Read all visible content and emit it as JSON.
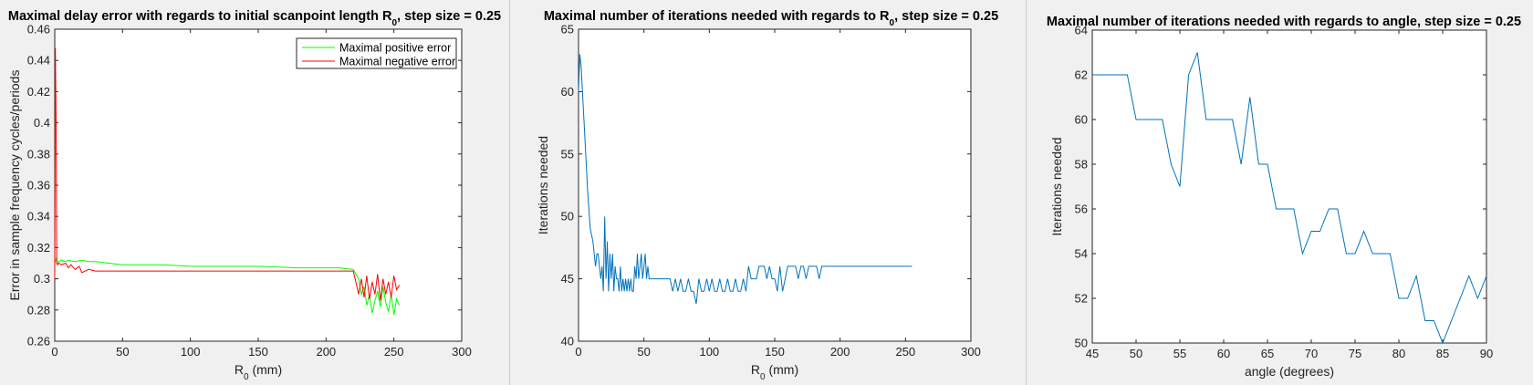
{
  "charts": [
    {
      "type": "line",
      "title_main": "Maximal delay error with regards to initial scanpoint length R",
      "title_sub": "0",
      "title_tail": ", step size = 0.25",
      "xlabel_main": "R",
      "xlabel_sub": "0",
      "xlabel_tail": " (mm)",
      "ylabel": "Error in sample frequency cycles/periods",
      "xlim": [
        0,
        300
      ],
      "ylim": [
        0.26,
        0.46
      ],
      "xticks": [
        0,
        50,
        100,
        150,
        200,
        250,
        300
      ],
      "yticks": [
        0.26,
        0.28,
        0.3,
        0.32,
        0.34,
        0.36,
        0.38,
        0.4,
        0.42,
        0.44,
        0.46
      ],
      "yticklabels": [
        "0.26",
        "0.28",
        "0.3",
        "0.32",
        "0.34",
        "0.36",
        "0.38",
        "0.4",
        "0.42",
        "0.44",
        "0.46"
      ],
      "legend": "top-right",
      "series": [
        {
          "name": "Maximal positive error",
          "color": "#00ff00",
          "x": [
            0,
            1,
            2,
            3,
            5,
            8,
            10,
            15,
            20,
            25,
            30,
            40,
            50,
            60,
            80,
            100,
            120,
            150,
            180,
            200,
            210,
            220,
            224,
            226,
            228,
            230,
            232,
            234,
            236,
            238,
            240,
            242,
            244,
            246,
            248,
            250,
            252,
            254
          ],
          "y": [
            0.31,
            0.313,
            0.31,
            0.311,
            0.312,
            0.311,
            0.312,
            0.311,
            0.312,
            0.311,
            0.311,
            0.31,
            0.309,
            0.309,
            0.309,
            0.308,
            0.308,
            0.308,
            0.307,
            0.307,
            0.307,
            0.306,
            0.3,
            0.29,
            0.295,
            0.283,
            0.29,
            0.278,
            0.286,
            0.292,
            0.282,
            0.295,
            0.285,
            0.279,
            0.29,
            0.277,
            0.287,
            0.283
          ]
        },
        {
          "name": "Maximal negative error",
          "color": "#ff0000",
          "x": [
            0,
            0.5,
            1,
            1.5,
            2,
            3,
            5,
            8,
            10,
            12,
            15,
            18,
            20,
            25,
            30,
            40,
            50,
            60,
            80,
            100,
            120,
            150,
            180,
            200,
            210,
            220,
            222,
            224,
            226,
            228,
            230,
            232,
            234,
            236,
            238,
            240,
            242,
            244,
            246,
            248,
            250,
            252,
            254
          ],
          "y": [
            0.3,
            0.448,
            0.4,
            0.31,
            0.309,
            0.31,
            0.309,
            0.31,
            0.307,
            0.309,
            0.306,
            0.308,
            0.304,
            0.306,
            0.305,
            0.305,
            0.305,
            0.305,
            0.305,
            0.305,
            0.305,
            0.305,
            0.305,
            0.305,
            0.305,
            0.305,
            0.298,
            0.29,
            0.3,
            0.288,
            0.302,
            0.287,
            0.298,
            0.29,
            0.303,
            0.286,
            0.3,
            0.29,
            0.298,
            0.288,
            0.302,
            0.293,
            0.296
          ]
        }
      ]
    },
    {
      "type": "line",
      "title_main": "Maximal number of iterations needed with regards to R",
      "title_sub": "0",
      "title_tail": ", step size = 0.25",
      "xlabel_main": "R",
      "xlabel_sub": "0",
      "xlabel_tail": " (mm)",
      "ylabel": "Iterations needed",
      "xlim": [
        0,
        300
      ],
      "ylim": [
        40,
        65
      ],
      "xticks": [
        0,
        50,
        100,
        150,
        200,
        250,
        300
      ],
      "yticks": [
        40,
        45,
        50,
        55,
        60,
        65
      ],
      "yticklabels": [
        "40",
        "45",
        "50",
        "55",
        "60",
        "65"
      ],
      "series": [
        {
          "color": "#0072bd",
          "x": [
            0,
            1,
            2,
            3,
            5,
            7,
            9,
            11,
            13,
            14,
            15,
            16,
            17,
            18,
            19,
            20,
            21,
            22,
            23,
            24,
            25,
            26,
            27,
            28,
            29,
            30,
            31,
            32,
            33,
            34,
            35,
            36,
            37,
            38,
            39,
            40,
            41,
            42,
            43,
            44,
            45,
            46,
            47,
            48,
            49,
            50,
            51,
            52,
            53,
            54,
            55,
            56,
            58,
            60,
            65,
            70,
            72,
            74,
            76,
            78,
            80,
            82,
            84,
            86,
            88,
            90,
            92,
            94,
            96,
            98,
            100,
            102,
            104,
            106,
            108,
            110,
            112,
            114,
            116,
            118,
            120,
            122,
            124,
            126,
            128,
            130,
            132,
            134,
            136,
            138,
            140,
            142,
            144,
            146,
            148,
            150,
            152,
            154,
            156,
            158,
            160,
            162,
            164,
            166,
            168,
            170,
            172,
            174,
            176,
            178,
            180,
            182,
            184,
            186,
            190,
            200,
            220,
            240,
            255
          ],
          "y": [
            60,
            63,
            62,
            60,
            56,
            52,
            49,
            48,
            46,
            47,
            47,
            46,
            45,
            46,
            44,
            50,
            45,
            48,
            44,
            47,
            45,
            47,
            44,
            46,
            45,
            45,
            44,
            46,
            44,
            45,
            44,
            45,
            44,
            45,
            44,
            45,
            44,
            44,
            46,
            45,
            47,
            45,
            46,
            47,
            45,
            46,
            47,
            45,
            46,
            45,
            45,
            45,
            45,
            45,
            45,
            45,
            44,
            45,
            44,
            45,
            44,
            44,
            45,
            44,
            44,
            43,
            45,
            44,
            44,
            45,
            44,
            45,
            44,
            44,
            45,
            44,
            44,
            45,
            44,
            44,
            45,
            44,
            44,
            45,
            44,
            46,
            45,
            45,
            45,
            46,
            46,
            46,
            45,
            46,
            45,
            45,
            44,
            46,
            44,
            45,
            46,
            46,
            46,
            46,
            45,
            46,
            46,
            45,
            46,
            46,
            46,
            46,
            45,
            46,
            46,
            46,
            46,
            46,
            46
          ]
        }
      ]
    },
    {
      "type": "line",
      "title_main": "Maximal number of iterations needed with regards to angle, step size = 0.25",
      "title_sub": "",
      "title_tail": "",
      "xlabel_main": "angle (degrees)",
      "xlabel_sub": "",
      "xlabel_tail": "",
      "ylabel": "Iterations needed",
      "xlim": [
        45,
        90
      ],
      "ylim": [
        50,
        64
      ],
      "xticks": [
        45,
        50,
        55,
        60,
        65,
        70,
        75,
        80,
        85,
        90
      ],
      "yticks": [
        50,
        52,
        54,
        56,
        58,
        60,
        62,
        64
      ],
      "yticklabels": [
        "50",
        "52",
        "54",
        "56",
        "58",
        "60",
        "62",
        "64"
      ],
      "series": [
        {
          "color": "#0072bd",
          "x": [
            45,
            46,
            47,
            48,
            49,
            50,
            51,
            52,
            53,
            54,
            55,
            56,
            57,
            58,
            59,
            60,
            61,
            62,
            63,
            64,
            65,
            66,
            67,
            68,
            69,
            70,
            71,
            72,
            73,
            74,
            75,
            76,
            77,
            78,
            79,
            80,
            81,
            82,
            83,
            84,
            85,
            86,
            87,
            88,
            89,
            90
          ],
          "y": [
            62,
            62,
            62,
            62,
            62,
            60,
            60,
            60,
            60,
            58,
            57,
            62,
            63,
            60,
            60,
            60,
            60,
            58,
            61,
            58,
            58,
            56,
            56,
            56,
            54,
            55,
            55,
            56,
            56,
            54,
            54,
            55,
            54,
            54,
            54,
            52,
            52,
            53,
            51,
            51,
            50,
            51,
            52,
            53,
            52,
            53
          ]
        }
      ]
    }
  ]
}
